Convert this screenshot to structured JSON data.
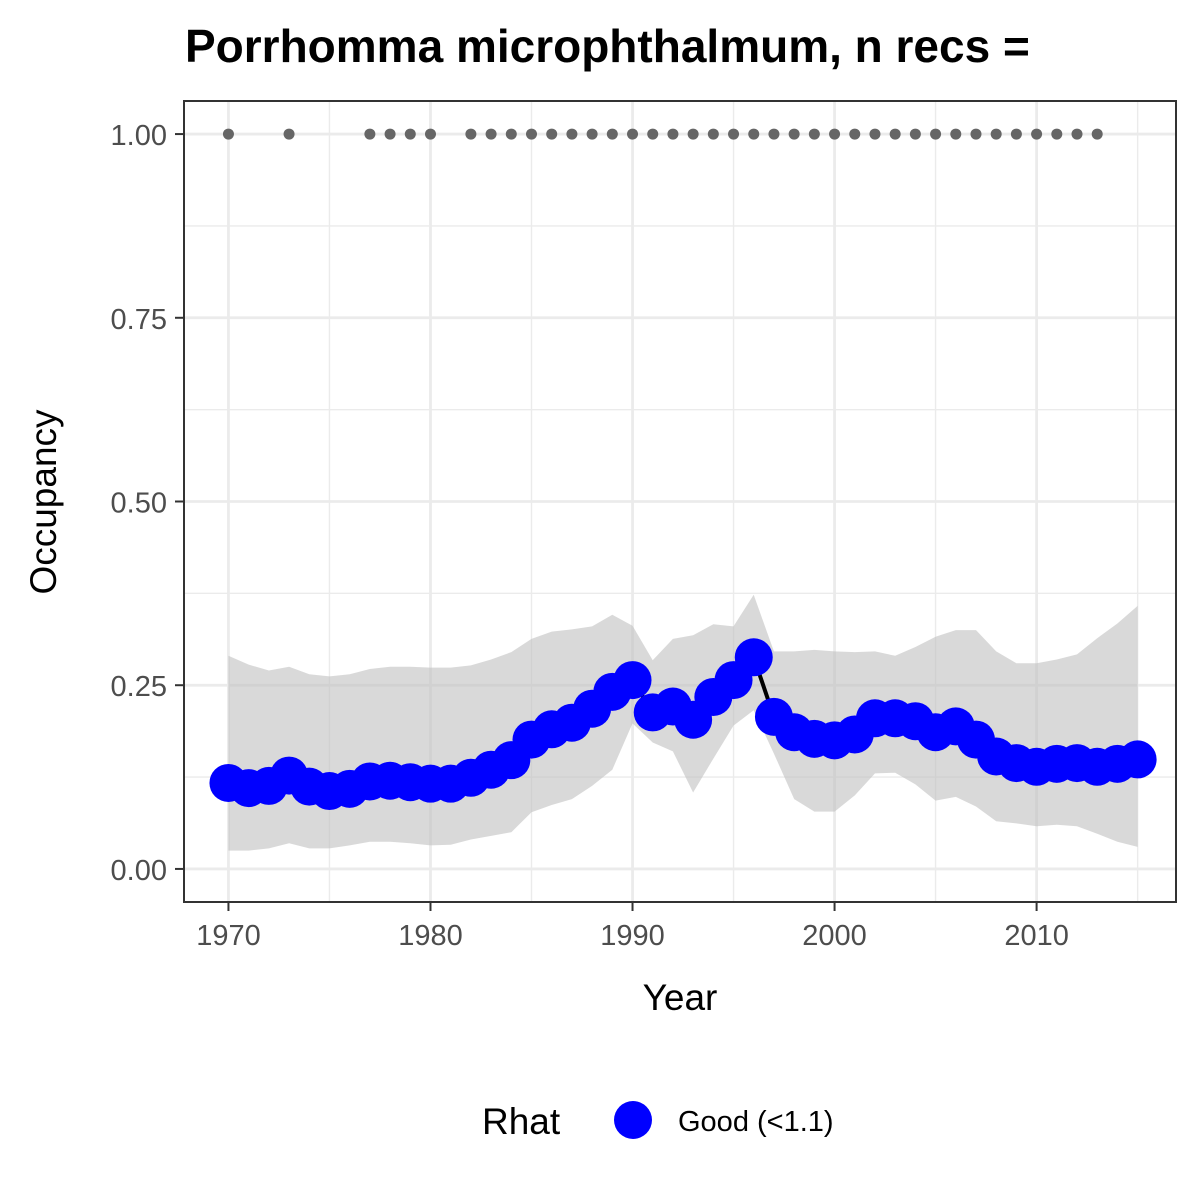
{
  "chart_data": {
    "type": "line",
    "title": "Porrhomma microphthalmum, n recs = ",
    "xlabel": "Year",
    "ylabel": "Occupancy",
    "xlim": [
      1967.8,
      2016.9
    ],
    "ylim": [
      -0.045,
      1.045
    ],
    "x_ticks": [
      1970,
      1980,
      1990,
      2000,
      2010
    ],
    "x_tick_labels": [
      "1970",
      "1980",
      "1990",
      "2000",
      "2010"
    ],
    "y_ticks": [
      0,
      0.25,
      0.5,
      0.75,
      1
    ],
    "y_tick_labels": [
      "0.00",
      "0.25",
      "0.50",
      "0.75",
      "1.00"
    ],
    "grid": true,
    "legend": {
      "title": "Rhat",
      "position": "bottom",
      "entries": [
        {
          "label": "Good (<1.1)",
          "color": "#0000ff"
        }
      ]
    },
    "colors": {
      "point": "#0000ff",
      "line": "#000000",
      "ribbon": "#bfbfbf",
      "record_points": "#666666",
      "grid": "#ebebeb",
      "panel_border": "#333333"
    },
    "series": [
      {
        "name": "Good (<1.1)",
        "x": [
          1970,
          1971,
          1972,
          1973,
          1974,
          1975,
          1976,
          1977,
          1978,
          1979,
          1980,
          1981,
          1982,
          1983,
          1984,
          1985,
          1986,
          1987,
          1988,
          1989,
          1990,
          1991,
          1992,
          1993,
          1994,
          1995,
          1996,
          1997,
          1998,
          1999,
          2000,
          2001,
          2002,
          2003,
          2004,
          2005,
          2006,
          2007,
          2008,
          2009,
          2010,
          2011,
          2012,
          2013,
          2014,
          2015
        ],
        "y": [
          0.117,
          0.11,
          0.113,
          0.127,
          0.112,
          0.106,
          0.109,
          0.119,
          0.12,
          0.118,
          0.116,
          0.116,
          0.124,
          0.135,
          0.148,
          0.176,
          0.19,
          0.199,
          0.218,
          0.241,
          0.257,
          0.213,
          0.221,
          0.203,
          0.234,
          0.257,
          0.288,
          0.207,
          0.186,
          0.177,
          0.175,
          0.183,
          0.205,
          0.205,
          0.201,
          0.186,
          0.194,
          0.176,
          0.153,
          0.144,
          0.139,
          0.143,
          0.144,
          0.139,
          0.143,
          0.149
        ],
        "lower": [
          0.025,
          0.025,
          0.028,
          0.035,
          0.028,
          0.028,
          0.032,
          0.037,
          0.037,
          0.035,
          0.032,
          0.033,
          0.04,
          0.045,
          0.05,
          0.077,
          0.087,
          0.095,
          0.113,
          0.135,
          0.198,
          0.172,
          0.16,
          0.104,
          0.15,
          0.195,
          0.216,
          0.157,
          0.095,
          0.078,
          0.078,
          0.1,
          0.13,
          0.131,
          0.115,
          0.093,
          0.098,
          0.085,
          0.065,
          0.062,
          0.058,
          0.06,
          0.058,
          0.048,
          0.037,
          0.03
        ],
        "upper": [
          0.29,
          0.278,
          0.27,
          0.275,
          0.265,
          0.262,
          0.265,
          0.272,
          0.275,
          0.275,
          0.274,
          0.274,
          0.277,
          0.285,
          0.295,
          0.313,
          0.323,
          0.326,
          0.33,
          0.346,
          0.331,
          0.284,
          0.313,
          0.318,
          0.333,
          0.33,
          0.373,
          0.296,
          0.296,
          0.298,
          0.296,
          0.295,
          0.296,
          0.29,
          0.302,
          0.316,
          0.325,
          0.325,
          0.296,
          0.28,
          0.28,
          0.285,
          0.292,
          0.314,
          0.334,
          0.358
        ]
      }
    ],
    "record_years": {
      "y": 1.0,
      "x": [
        1970,
        1973,
        1977,
        1978,
        1979,
        1980,
        1982,
        1983,
        1984,
        1985,
        1986,
        1987,
        1988,
        1989,
        1990,
        1991,
        1992,
        1993,
        1994,
        1995,
        1996,
        1997,
        1998,
        1999,
        2000,
        2001,
        2002,
        2003,
        2004,
        2005,
        2006,
        2007,
        2008,
        2009,
        2010,
        2011,
        2012,
        2013
      ]
    }
  }
}
